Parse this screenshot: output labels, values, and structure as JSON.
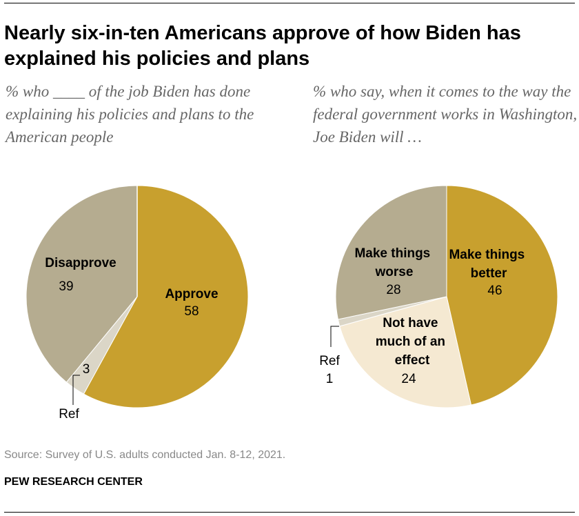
{
  "title": "Nearly six-in-ten Americans approve of how Biden has explained his policies and plans",
  "source": "Source: Survey of U.S. adults conducted Jan. 8-12, 2021.",
  "brand": "PEW RESEARCH CENTER",
  "colors": {
    "gold": "#C8A02E",
    "taupe": "#B5AC90",
    "light_taupe": "#DBD6C7",
    "cream": "#F5E9D2",
    "leader": "#000000"
  },
  "chart_data": [
    {
      "type": "pie",
      "subtitle": "% who ____ of the job Biden has done explaining his policies and plans to the American people",
      "slices": [
        {
          "label": "Approve",
          "value": 58,
          "value_text": "58",
          "color": "gold"
        },
        {
          "label": "Ref",
          "value": 3,
          "value_text": "3",
          "color": "light_taupe"
        },
        {
          "label": "Disapprove",
          "value": 39,
          "value_text": "39",
          "color": "taupe"
        }
      ]
    },
    {
      "type": "pie",
      "subtitle": "% who say, when it comes to the way the federal government works in Washington, Joe Biden will …",
      "slices": [
        {
          "label": "Make things better",
          "value": 46,
          "value_text": "46",
          "color": "gold"
        },
        {
          "label": "Not have much of an effect",
          "value": 24,
          "value_text": "24",
          "color": "cream"
        },
        {
          "label": "Ref",
          "value": 1,
          "value_text": "1",
          "color": "light_taupe"
        },
        {
          "label": "Make things worse",
          "value": 28,
          "value_text": "28",
          "color": "taupe"
        }
      ]
    }
  ]
}
